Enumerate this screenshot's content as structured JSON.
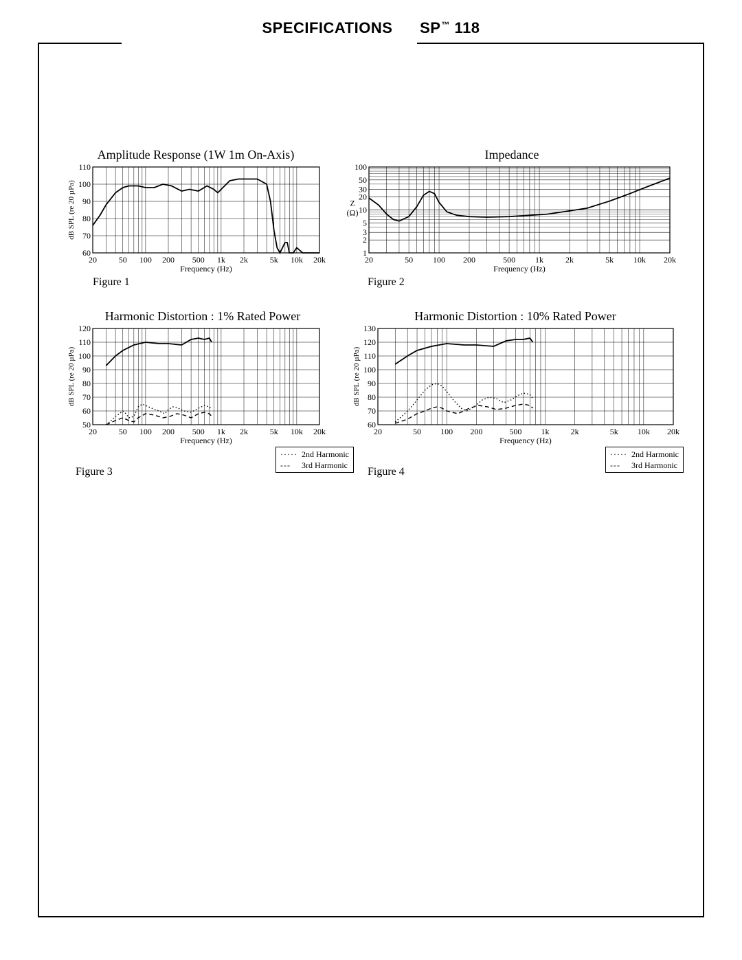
{
  "header": {
    "left": "SPECIFICATIONS",
    "right_prefix": "SP",
    "right_tm": "™",
    "right_suffix": " 118"
  },
  "fig1": {
    "title": "Amplitude Response   (1W 1m  On-Axis)",
    "caption": "Figure 1",
    "xlabel": "Frequency (Hz)",
    "ylabel": "dB SPL (re 20 µPa)",
    "type": "line-logx",
    "xlim": [
      20,
      20000
    ],
    "ylim": [
      60,
      110
    ],
    "ytick_step": 10,
    "xticks": [
      20,
      50,
      100,
      200,
      500,
      1000,
      2000,
      5000,
      10000,
      20000
    ],
    "xticklabels": [
      "20",
      "50",
      "100",
      "200",
      "500",
      "1k",
      "2k",
      "5k",
      "10k",
      "20k"
    ],
    "line_color": "#000000",
    "line_width": 1.8,
    "background_color": "#ffffff",
    "grid_color": "#000000",
    "curve": [
      [
        20,
        76
      ],
      [
        25,
        82
      ],
      [
        30,
        88
      ],
      [
        40,
        95
      ],
      [
        50,
        98
      ],
      [
        60,
        99
      ],
      [
        80,
        99
      ],
      [
        100,
        98
      ],
      [
        130,
        98
      ],
      [
        170,
        100
      ],
      [
        220,
        99
      ],
      [
        300,
        96
      ],
      [
        380,
        97
      ],
      [
        500,
        96
      ],
      [
        650,
        99
      ],
      [
        800,
        97
      ],
      [
        900,
        95
      ],
      [
        1000,
        97
      ],
      [
        1300,
        102
      ],
      [
        1700,
        103
      ],
      [
        2200,
        103
      ],
      [
        3000,
        103
      ],
      [
        4000,
        100
      ],
      [
        4500,
        90
      ],
      [
        5000,
        73
      ],
      [
        5500,
        63
      ],
      [
        6000,
        60
      ],
      [
        7000,
        66
      ],
      [
        7500,
        66
      ],
      [
        8000,
        60
      ],
      [
        9000,
        60
      ],
      [
        10000,
        63
      ],
      [
        12000,
        60
      ],
      [
        20000,
        60
      ]
    ]
  },
  "fig2": {
    "title": "Impedance",
    "caption": "Figure 2",
    "xlabel": "Frequency (Hz)",
    "ylabel": "Z\n(Ω)",
    "type": "line-loglog",
    "xlim": [
      20,
      20000
    ],
    "ylim": [
      1,
      100
    ],
    "yticks": [
      1,
      2,
      3,
      5,
      10,
      20,
      30,
      50,
      100
    ],
    "xticks": [
      20,
      50,
      100,
      200,
      500,
      1000,
      2000,
      5000,
      10000,
      20000
    ],
    "xticklabels": [
      "20",
      "50",
      "100",
      "200",
      "500",
      "1k",
      "2k",
      "5k",
      "10k",
      "20k"
    ],
    "line_color": "#000000",
    "line_width": 1.8,
    "curve": [
      [
        20,
        19
      ],
      [
        25,
        13
      ],
      [
        30,
        8
      ],
      [
        35,
        6
      ],
      [
        40,
        5.5
      ],
      [
        50,
        7
      ],
      [
        60,
        12
      ],
      [
        70,
        22
      ],
      [
        80,
        27
      ],
      [
        90,
        24
      ],
      [
        100,
        15
      ],
      [
        120,
        9
      ],
      [
        150,
        7.5
      ],
      [
        200,
        7
      ],
      [
        300,
        6.8
      ],
      [
        500,
        7
      ],
      [
        800,
        7.5
      ],
      [
        1200,
        8
      ],
      [
        2000,
        9.5
      ],
      [
        3000,
        11
      ],
      [
        5000,
        16
      ],
      [
        8000,
        24
      ],
      [
        12000,
        35
      ],
      [
        20000,
        55
      ]
    ]
  },
  "fig3": {
    "title": "Harmonic Distortion :  1% Rated Power",
    "caption": "Figure 3",
    "xlabel": "Frequency (Hz)",
    "ylabel": "dB SPL (re 20 µPa)",
    "type": "multi-logx",
    "xlim": [
      20,
      20000
    ],
    "ylim": [
      50,
      120
    ],
    "ytick_step": 10,
    "xticks": [
      20,
      50,
      100,
      200,
      500,
      1000,
      2000,
      5000,
      10000,
      20000
    ],
    "xticklabels": [
      "20",
      "50",
      "100",
      "200",
      "500",
      "1k",
      "2k",
      "5k",
      "10k",
      "20k"
    ],
    "background_color": "#ffffff",
    "legend": [
      {
        "label": "2nd Harmonic",
        "style": "dotted"
      },
      {
        "label": "3rd Harmonic",
        "style": "dashed"
      }
    ],
    "curves": [
      {
        "style": "solid",
        "width": 1.8,
        "color": "#000000",
        "points": [
          [
            30,
            93
          ],
          [
            40,
            100
          ],
          [
            50,
            104
          ],
          [
            70,
            108
          ],
          [
            100,
            110
          ],
          [
            150,
            109
          ],
          [
            200,
            109
          ],
          [
            300,
            108
          ],
          [
            400,
            112
          ],
          [
            500,
            113
          ],
          [
            600,
            112
          ],
          [
            700,
            113
          ],
          [
            750,
            110
          ]
        ]
      },
      {
        "style": "dotted",
        "width": 1.4,
        "color": "#000000",
        "points": [
          [
            30,
            50
          ],
          [
            35,
            53
          ],
          [
            40,
            56
          ],
          [
            45,
            58
          ],
          [
            50,
            60
          ],
          [
            55,
            58
          ],
          [
            60,
            55
          ],
          [
            70,
            56
          ],
          [
            80,
            63
          ],
          [
            90,
            65
          ],
          [
            100,
            64
          ],
          [
            120,
            62
          ],
          [
            150,
            60
          ],
          [
            180,
            58
          ],
          [
            200,
            61
          ],
          [
            230,
            63
          ],
          [
            270,
            62
          ],
          [
            320,
            60
          ],
          [
            400,
            59
          ],
          [
            500,
            62
          ],
          [
            600,
            64
          ],
          [
            700,
            63
          ],
          [
            750,
            61
          ]
        ]
      },
      {
        "style": "dashed",
        "width": 1.4,
        "color": "#000000",
        "points": [
          [
            30,
            50
          ],
          [
            40,
            53
          ],
          [
            50,
            55
          ],
          [
            60,
            53
          ],
          [
            70,
            52
          ],
          [
            80,
            55
          ],
          [
            100,
            58
          ],
          [
            130,
            57
          ],
          [
            170,
            55
          ],
          [
            210,
            56
          ],
          [
            260,
            58
          ],
          [
            320,
            57
          ],
          [
            400,
            55
          ],
          [
            500,
            58
          ],
          [
            600,
            59
          ],
          [
            700,
            58
          ],
          [
            750,
            56
          ]
        ]
      }
    ]
  },
  "fig4": {
    "title": "Harmonic Distortion :  10% Rated Power",
    "caption": "Figure 4",
    "xlabel": "Frequency (Hz)",
    "ylabel": "dB SPL (re 20 µPa)",
    "type": "multi-logx",
    "xlim": [
      20,
      20000
    ],
    "ylim": [
      60,
      130
    ],
    "ytick_step": 10,
    "xticks": [
      20,
      50,
      100,
      200,
      500,
      1000,
      2000,
      5000,
      10000,
      20000
    ],
    "xticklabels": [
      "20",
      "50",
      "100",
      "200",
      "500",
      "1k",
      "2k",
      "5k",
      "10k",
      "20k"
    ],
    "legend": [
      {
        "label": "2nd Harmonic",
        "style": "dotted"
      },
      {
        "label": "3rd Harmonic",
        "style": "dashed"
      }
    ],
    "curves": [
      {
        "style": "solid",
        "width": 1.8,
        "color": "#000000",
        "points": [
          [
            30,
            104
          ],
          [
            40,
            110
          ],
          [
            50,
            114
          ],
          [
            70,
            117
          ],
          [
            100,
            119
          ],
          [
            150,
            118
          ],
          [
            200,
            118
          ],
          [
            300,
            117
          ],
          [
            400,
            121
          ],
          [
            500,
            122
          ],
          [
            600,
            122
          ],
          [
            700,
            123
          ],
          [
            750,
            120
          ]
        ]
      },
      {
        "style": "dotted",
        "width": 1.4,
        "color": "#000000",
        "points": [
          [
            30,
            62
          ],
          [
            35,
            66
          ],
          [
            40,
            70
          ],
          [
            45,
            74
          ],
          [
            50,
            78
          ],
          [
            60,
            85
          ],
          [
            70,
            89
          ],
          [
            80,
            90
          ],
          [
            90,
            88
          ],
          [
            100,
            84
          ],
          [
            120,
            77
          ],
          [
            140,
            72
          ],
          [
            160,
            70
          ],
          [
            190,
            73
          ],
          [
            230,
            78
          ],
          [
            270,
            80
          ],
          [
            320,
            79
          ],
          [
            380,
            76
          ],
          [
            450,
            78
          ],
          [
            520,
            81
          ],
          [
            600,
            83
          ],
          [
            700,
            82
          ],
          [
            750,
            79
          ]
        ]
      },
      {
        "style": "dashed",
        "width": 1.4,
        "color": "#000000",
        "points": [
          [
            30,
            61
          ],
          [
            40,
            64
          ],
          [
            50,
            68
          ],
          [
            60,
            70
          ],
          [
            70,
            72
          ],
          [
            80,
            73
          ],
          [
            90,
            72
          ],
          [
            100,
            70
          ],
          [
            130,
            68
          ],
          [
            170,
            72
          ],
          [
            210,
            74
          ],
          [
            260,
            73
          ],
          [
            320,
            71
          ],
          [
            400,
            72
          ],
          [
            500,
            74
          ],
          [
            600,
            75
          ],
          [
            700,
            74
          ],
          [
            750,
            72
          ]
        ]
      }
    ]
  }
}
